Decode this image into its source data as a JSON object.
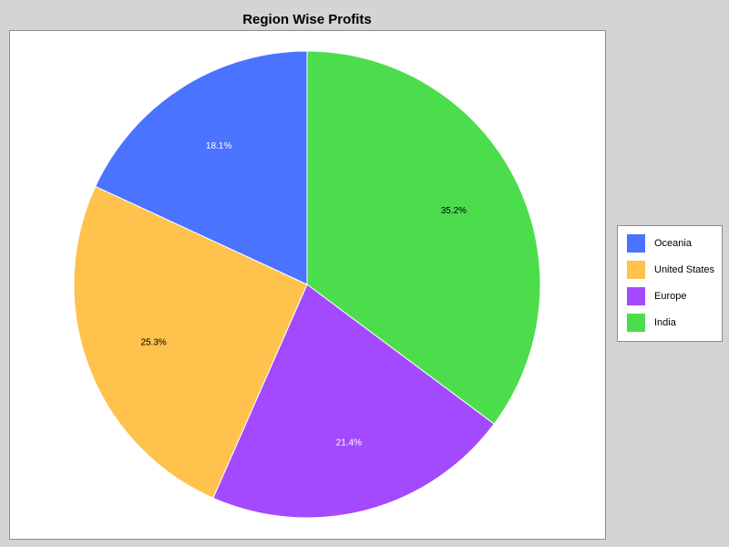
{
  "chart_data": {
    "type": "pie",
    "title": "Region Wise Profits",
    "slices": [
      {
        "name": "India",
        "value": 35.2,
        "label": "35.2%",
        "color": "#4cdd4c",
        "label_color": "#000000"
      },
      {
        "name": "Europe",
        "value": 21.4,
        "label": "21.4%",
        "color": "#a349fe",
        "label_color": "#ffffff"
      },
      {
        "name": "United States",
        "value": 25.3,
        "label": "25.3%",
        "color": "#ffc24c",
        "label_color": "#000000"
      },
      {
        "name": "Oceania",
        "value": 18.1,
        "label": "18.1%",
        "color": "#4a73ff",
        "label_color": "#ffffff"
      }
    ],
    "legend": {
      "placement": "right",
      "entries": [
        "Oceania",
        "United States",
        "Europe",
        "India"
      ]
    }
  }
}
